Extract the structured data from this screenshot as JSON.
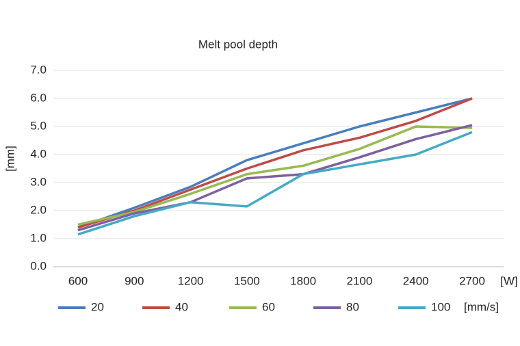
{
  "chart_data": {
    "type": "line",
    "title": "Melt pool depth",
    "y_label": "[mm]",
    "x_unit": "[W]",
    "legend_unit": "[mm/s]",
    "categories": [
      "600",
      "900",
      "1200",
      "1500",
      "1800",
      "2100",
      "2400",
      "2700"
    ],
    "series": [
      {
        "name": "20",
        "color": "#4a7ebb",
        "values": [
          1.4,
          2.1,
          2.85,
          3.8,
          4.4,
          5.0,
          5.5,
          6.0
        ]
      },
      {
        "name": "40",
        "color": "#be4b48",
        "values": [
          1.4,
          2.0,
          2.75,
          3.5,
          4.15,
          4.6,
          5.2,
          6.0
        ]
      },
      {
        "name": "60",
        "color": "#98b954",
        "values": [
          1.5,
          1.95,
          2.6,
          3.3,
          3.6,
          4.2,
          5.0,
          4.95
        ]
      },
      {
        "name": "80",
        "color": "#7d60a0",
        "values": [
          1.3,
          1.9,
          2.3,
          3.15,
          3.3,
          3.9,
          4.55,
          5.05
        ]
      },
      {
        "name": "100",
        "color": "#46aac5",
        "values": [
          1.15,
          1.8,
          2.3,
          2.15,
          3.3,
          3.65,
          4.0,
          4.8
        ]
      }
    ],
    "ylim": [
      0,
      7
    ],
    "yticks": [
      {
        "value": 0,
        "label": "0.0"
      },
      {
        "value": 1,
        "label": "1.0"
      },
      {
        "value": 2,
        "label": "2.0"
      },
      {
        "value": 3,
        "label": "3.0"
      },
      {
        "value": 4,
        "label": "4.0"
      },
      {
        "value": 5,
        "label": "5.0"
      },
      {
        "value": 6,
        "label": "6.0"
      },
      {
        "value": 7,
        "label": "7.0"
      }
    ],
    "grid": true,
    "legend": "bottom"
  }
}
